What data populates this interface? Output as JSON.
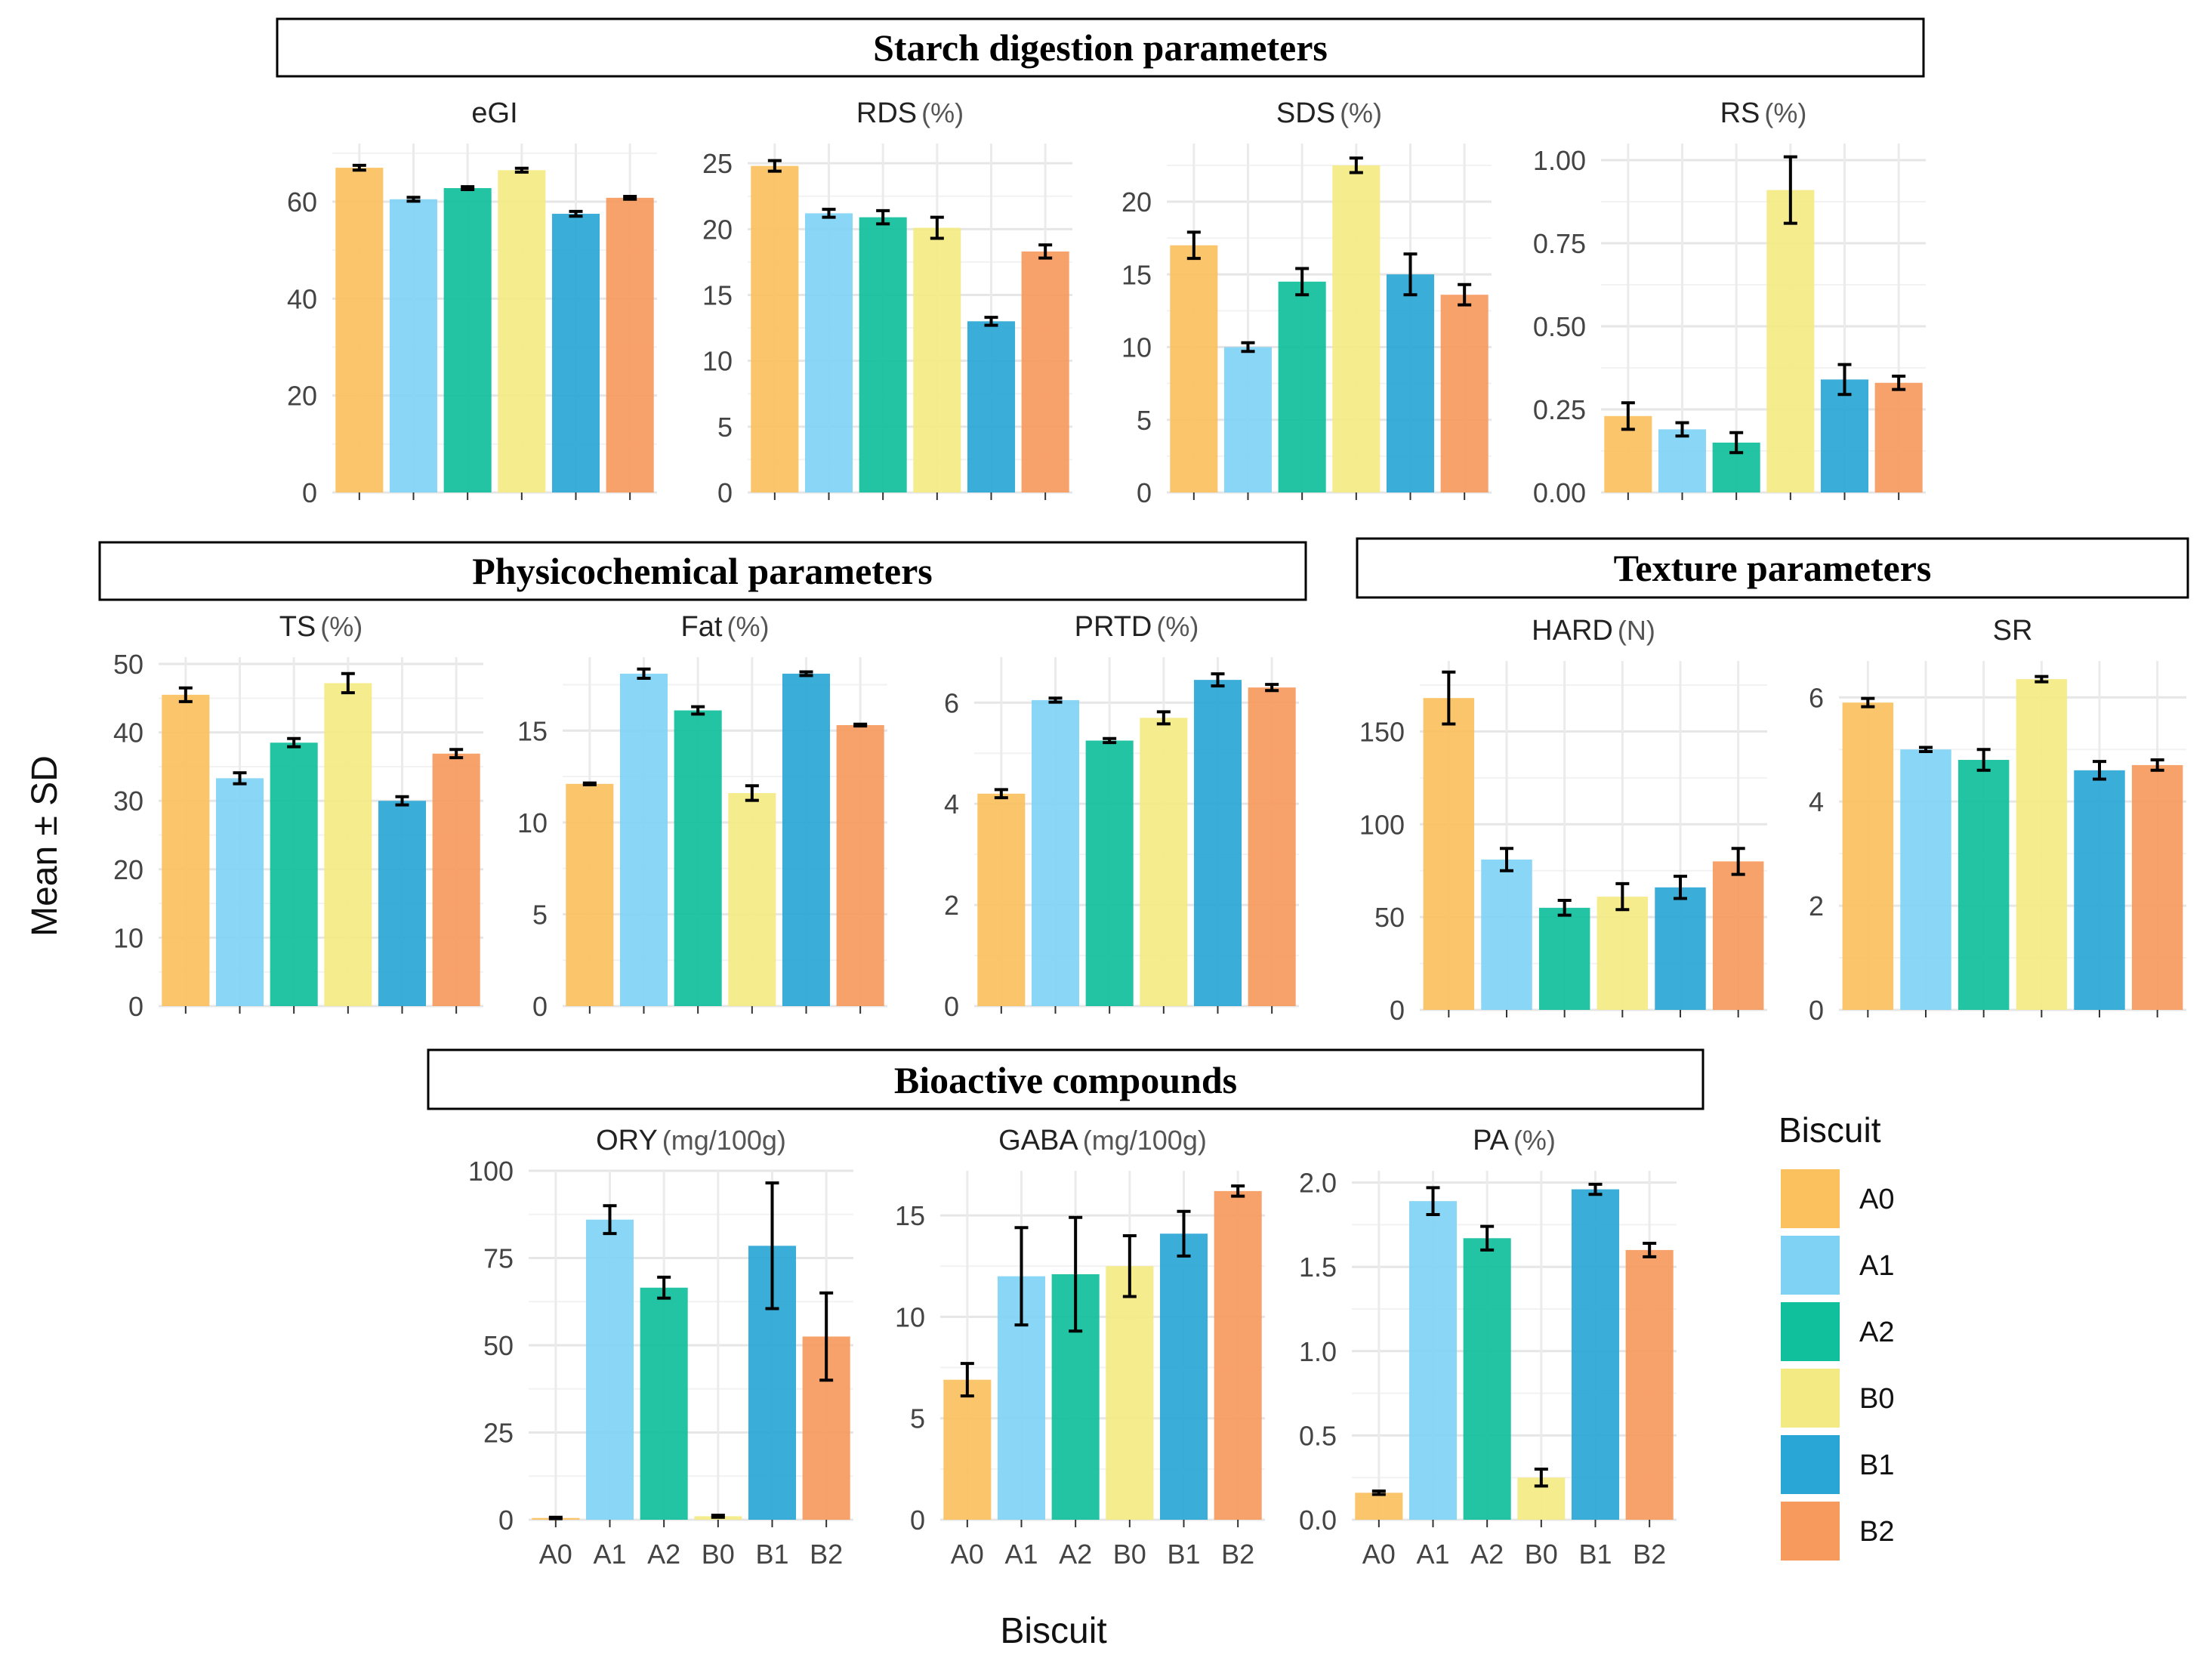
{
  "sections": {
    "starch": "Starch digestion parameters",
    "physico": "Physicochemical parameters",
    "texture": "Texture parameters",
    "bioactive": "Bioactive compounds"
  },
  "y_axis_label": "Mean ± SD",
  "x_axis_label": "Biscuit",
  "legend": {
    "title": "Biscuit",
    "items": [
      {
        "label": "A0",
        "color": "#FBC15E"
      },
      {
        "label": "A1",
        "color": "#80D2F5"
      },
      {
        "label": "A2",
        "color": "#10BF9C"
      },
      {
        "label": "B0",
        "color": "#F4EA84"
      },
      {
        "label": "B1",
        "color": "#2AA6D6"
      },
      {
        "label": "B2",
        "color": "#F79A5E"
      }
    ]
  },
  "chart_data": [
    {
      "id": "eGI",
      "type": "bar",
      "title": "eGI",
      "unit": "",
      "categories": [
        "A0",
        "A1",
        "A2",
        "B0",
        "B1",
        "B2"
      ],
      "values": [
        67,
        60.5,
        62.8,
        66.5,
        57.5,
        60.8
      ],
      "errors": [
        0.5,
        0.4,
        0.3,
        0.4,
        0.5,
        0.3
      ],
      "ylim": [
        0,
        72
      ],
      "yticks": [
        0,
        20,
        40,
        60
      ],
      "decimals": 0,
      "show_xlabels": false
    },
    {
      "id": "RDS",
      "type": "bar",
      "title": "RDS",
      "unit": "(%)",
      "categories": [
        "A0",
        "A1",
        "A2",
        "B0",
        "B1",
        "B2"
      ],
      "values": [
        24.8,
        21.2,
        20.9,
        20.1,
        13,
        18.3
      ],
      "errors": [
        0.4,
        0.3,
        0.5,
        0.8,
        0.3,
        0.5
      ],
      "ylim": [
        0,
        26.5
      ],
      "yticks": [
        0,
        5,
        10,
        15,
        20,
        25
      ],
      "decimals": 0,
      "show_xlabels": false
    },
    {
      "id": "SDS",
      "type": "bar",
      "title": "SDS",
      "unit": "(%)",
      "categories": [
        "A0",
        "A1",
        "A2",
        "B0",
        "B1",
        "B2"
      ],
      "values": [
        17,
        10,
        14.5,
        22.5,
        15,
        13.6
      ],
      "errors": [
        0.9,
        0.3,
        0.9,
        0.5,
        1.4,
        0.7
      ],
      "ylim": [
        0,
        24
      ],
      "yticks": [
        0,
        5,
        10,
        15,
        20
      ],
      "decimals": 0,
      "show_xlabels": false
    },
    {
      "id": "RS",
      "type": "bar",
      "title": "RS",
      "unit": "(%)",
      "categories": [
        "A0",
        "A1",
        "A2",
        "B0",
        "B1",
        "B2"
      ],
      "values": [
        0.23,
        0.19,
        0.15,
        0.91,
        0.34,
        0.33
      ],
      "errors": [
        0.04,
        0.02,
        0.03,
        0.1,
        0.045,
        0.02
      ],
      "ylim": [
        0,
        1.05
      ],
      "yticks": [
        0,
        0.25,
        0.5,
        0.75,
        1.0
      ],
      "decimals": 2,
      "show_xlabels": false
    },
    {
      "id": "TS",
      "type": "bar",
      "title": "TS",
      "unit": "(%)",
      "categories": [
        "A0",
        "A1",
        "A2",
        "B0",
        "B1",
        "B2"
      ],
      "values": [
        45.5,
        33.3,
        38.5,
        47.2,
        30,
        36.9
      ],
      "errors": [
        1,
        0.8,
        0.6,
        1.4,
        0.6,
        0.6
      ],
      "ylim": [
        0,
        51
      ],
      "yticks": [
        0,
        10,
        20,
        30,
        40,
        50
      ],
      "decimals": 0,
      "show_xlabels": false
    },
    {
      "id": "Fat",
      "type": "bar",
      "title": "Fat",
      "unit": "(%)",
      "categories": [
        "A0",
        "A1",
        "A2",
        "B0",
        "B1",
        "B2"
      ],
      "values": [
        12.1,
        18.1,
        16.1,
        11.6,
        18.1,
        15.3
      ],
      "errors": [
        0.05,
        0.25,
        0.2,
        0.4,
        0.1,
        0.05
      ],
      "ylim": [
        0,
        19
      ],
      "yticks": [
        0,
        5,
        10,
        15
      ],
      "decimals": 0,
      "show_xlabels": false
    },
    {
      "id": "PRTD",
      "type": "bar",
      "title": "PRTD",
      "unit": "(%)",
      "categories": [
        "A0",
        "A1",
        "A2",
        "B0",
        "B1",
        "B2"
      ],
      "values": [
        4.2,
        6.05,
        5.25,
        5.7,
        6.45,
        6.3
      ],
      "errors": [
        0.08,
        0.04,
        0.04,
        0.12,
        0.12,
        0.06
      ],
      "ylim": [
        0,
        6.9
      ],
      "yticks": [
        0,
        2,
        4,
        6
      ],
      "decimals": 0,
      "show_xlabels": false
    },
    {
      "id": "HARD",
      "type": "bar",
      "title": "HARD",
      "unit": "(N)",
      "categories": [
        "A0",
        "A1",
        "A2",
        "B0",
        "B1",
        "B2"
      ],
      "values": [
        168,
        81,
        55,
        61,
        66,
        80
      ],
      "errors": [
        14,
        6,
        4,
        7,
        6,
        7
      ],
      "ylim": [
        0,
        188
      ],
      "yticks": [
        0,
        50,
        100,
        150
      ],
      "decimals": 0,
      "show_xlabels": false
    },
    {
      "id": "SR",
      "type": "bar",
      "title": "SR",
      "unit": "",
      "categories": [
        "A0",
        "A1",
        "A2",
        "B0",
        "B1",
        "B2"
      ],
      "values": [
        5.9,
        5,
        4.8,
        6.35,
        4.6,
        4.7
      ],
      "errors": [
        0.08,
        0.04,
        0.2,
        0.05,
        0.17,
        0.1
      ],
      "ylim": [
        0,
        6.7
      ],
      "yticks": [
        0,
        2,
        4,
        6
      ],
      "decimals": 0,
      "show_xlabels": false
    },
    {
      "id": "ORY",
      "type": "bar",
      "title": "ORY",
      "unit": "(mg/100g)",
      "categories": [
        "A0",
        "A1",
        "A2",
        "B0",
        "B1",
        "B2"
      ],
      "values": [
        0.5,
        86,
        66.5,
        1,
        78.5,
        52.5
      ],
      "errors": [
        0.2,
        4,
        3,
        0.3,
        18,
        12.5
      ],
      "ylim": [
        0,
        100
      ],
      "yticks": [
        0,
        25,
        50,
        75,
        100
      ],
      "decimals": 0,
      "show_xlabels": true
    },
    {
      "id": "GABA",
      "type": "bar",
      "title": "GABA",
      "unit": "(mg/100g)",
      "categories": [
        "A0",
        "A1",
        "A2",
        "B0",
        "B1",
        "B2"
      ],
      "values": [
        6.9,
        12,
        12.1,
        12.5,
        14.1,
        16.2
      ],
      "errors": [
        0.8,
        2.4,
        2.8,
        1.5,
        1.1,
        0.25
      ],
      "ylim": [
        0,
        17.2
      ],
      "yticks": [
        0,
        5,
        10,
        15
      ],
      "decimals": 0,
      "show_xlabels": true
    },
    {
      "id": "PA",
      "type": "bar",
      "title": "PA",
      "unit": "(%)",
      "categories": [
        "A0",
        "A1",
        "A2",
        "B0",
        "B1",
        "B2"
      ],
      "values": [
        0.16,
        1.89,
        1.67,
        0.25,
        1.96,
        1.6
      ],
      "errors": [
        0.01,
        0.08,
        0.07,
        0.05,
        0.03,
        0.04
      ],
      "ylim": [
        0,
        2.07
      ],
      "yticks": [
        0,
        0.5,
        1.0,
        1.5,
        2.0
      ],
      "decimals": 1,
      "show_xlabels": true
    }
  ]
}
